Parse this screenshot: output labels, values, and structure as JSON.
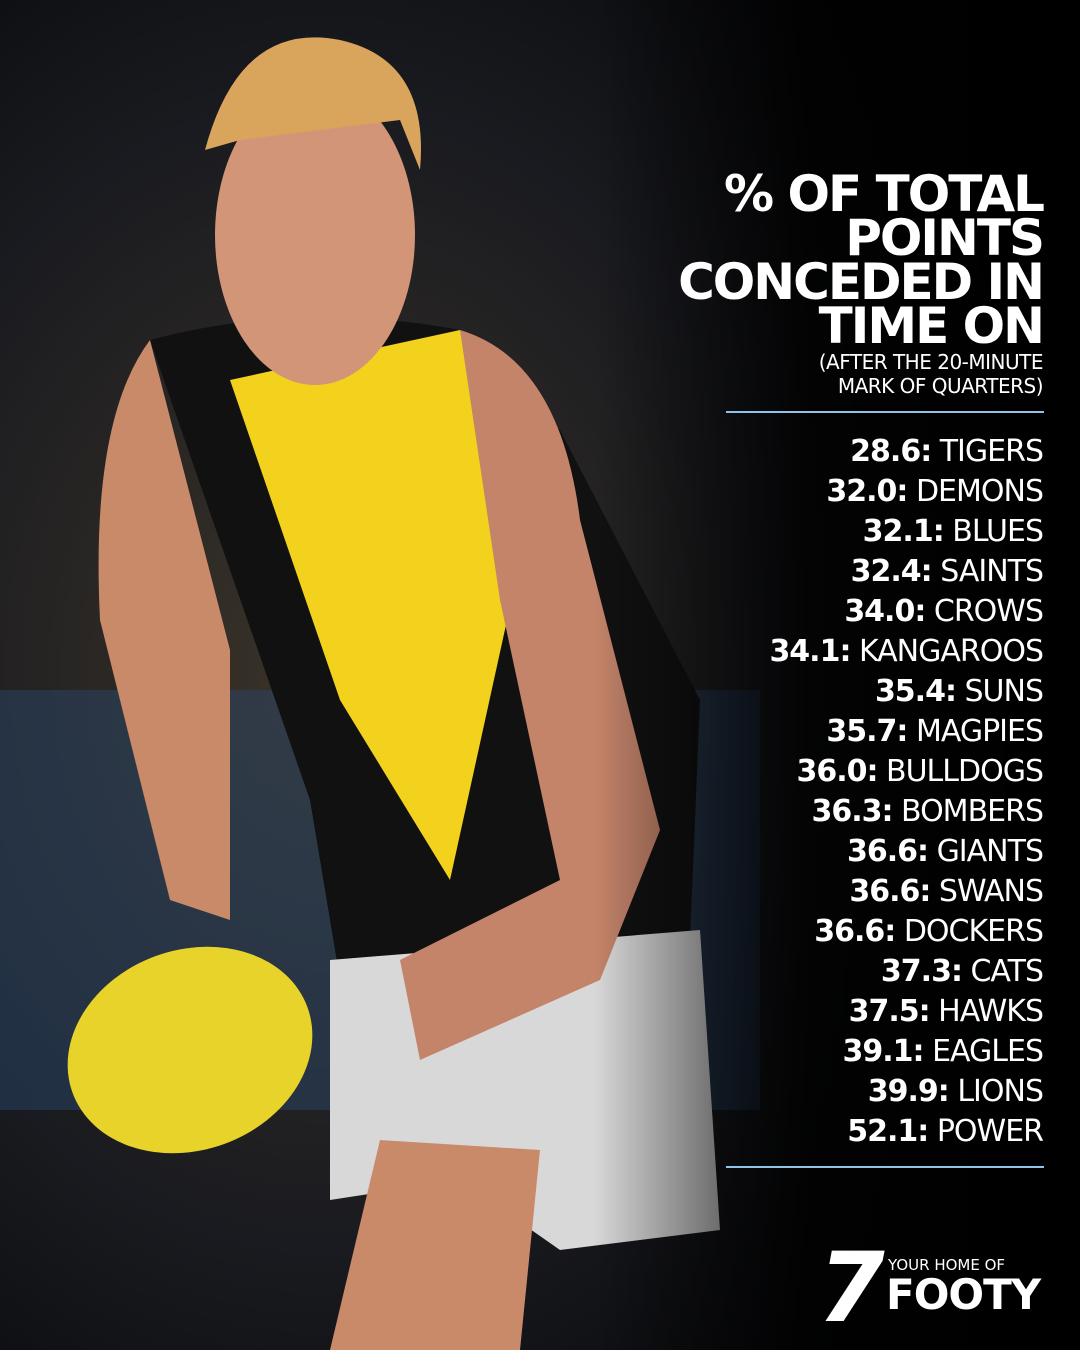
{
  "header": {
    "title_lines": [
      "% OF TOTAL",
      "POINTS",
      "CONCEDED IN",
      "TIME ON"
    ],
    "subtitle_lines": [
      "(AFTER THE 20-MINUTE",
      "MARK OF QUARTERS)"
    ]
  },
  "list": [
    {
      "value": "28.6:",
      "team": "TIGERS"
    },
    {
      "value": "32.0:",
      "team": "DEMONS"
    },
    {
      "value": "32.1:",
      "team": "BLUES"
    },
    {
      "value": "32.4:",
      "team": "SAINTS"
    },
    {
      "value": "34.0:",
      "team": "CROWS"
    },
    {
      "value": "34.1:",
      "team": "KANGAROOS"
    },
    {
      "value": "35.4:",
      "team": "SUNS"
    },
    {
      "value": "35.7:",
      "team": "MAGPIES"
    },
    {
      "value": "36.0:",
      "team": "BULLDOGS"
    },
    {
      "value": "36.3:",
      "team": "BOMBERS"
    },
    {
      "value": "36.6:",
      "team": "GIANTS"
    },
    {
      "value": "36.6:",
      "team": "SWANS"
    },
    {
      "value": "36.6:",
      "team": "DOCKERS"
    },
    {
      "value": "37.3:",
      "team": "CATS"
    },
    {
      "value": "37.5:",
      "team": "HAWKS"
    },
    {
      "value": "39.1:",
      "team": "EAGLES"
    },
    {
      "value": "39.9:",
      "team": "LIONS"
    },
    {
      "value": "52.1:",
      "team": "POWER"
    }
  ],
  "logo": {
    "mark": "7",
    "tagline": "YOUR HOME OF",
    "name": "FOOTY"
  }
}
